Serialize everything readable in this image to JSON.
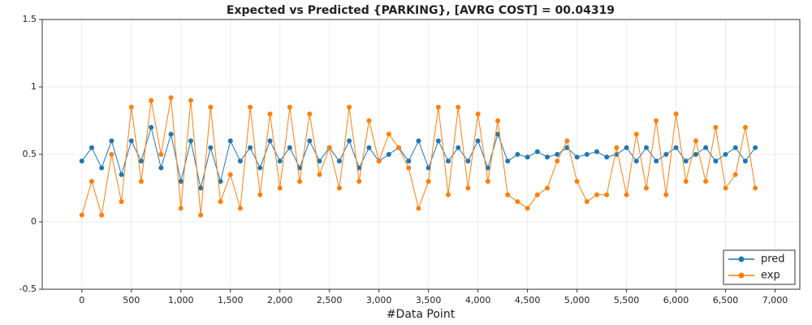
{
  "chart_data": {
    "type": "line",
    "title": "Expected vs Predicted {PARKING}, [AVRG COST] = 00.04319",
    "x_label": "#Data Point",
    "x": [
      0,
      100,
      200,
      300,
      400,
      500,
      600,
      700,
      800,
      900,
      1000,
      1100,
      1200,
      1300,
      1400,
      1500,
      1600,
      1700,
      1800,
      1900,
      2000,
      2100,
      2200,
      2300,
      2400,
      2500,
      2600,
      2700,
      2800,
      2900,
      3000,
      3100,
      3200,
      3300,
      3400,
      3500,
      3600,
      3700,
      3800,
      3900,
      4000,
      4100,
      4200,
      4300,
      4400,
      4500,
      4600,
      4700,
      4800,
      4900,
      5000,
      5100,
      5200,
      5300,
      5400,
      5500,
      5600,
      5700,
      5800,
      5900,
      6000,
      6100,
      6200,
      6300,
      6400,
      6500,
      6600,
      6700,
      6800
    ],
    "series": [
      {
        "name": "pred",
        "color": "#1f77b4",
        "values": [
          0.45,
          0.55,
          0.4,
          0.6,
          0.35,
          0.6,
          0.45,
          0.7,
          0.4,
          0.65,
          0.3,
          0.6,
          0.25,
          0.55,
          0.3,
          0.6,
          0.45,
          0.55,
          0.4,
          0.6,
          0.45,
          0.55,
          0.4,
          0.6,
          0.45,
          0.55,
          0.45,
          0.6,
          0.4,
          0.55,
          0.45,
          0.5,
          0.55,
          0.45,
          0.6,
          0.4,
          0.6,
          0.45,
          0.55,
          0.45,
          0.6,
          0.4,
          0.65,
          0.45,
          0.5,
          0.48,
          0.52,
          0.48,
          0.5,
          0.55,
          0.48,
          0.5,
          0.52,
          0.48,
          0.5,
          0.55,
          0.45,
          0.55,
          0.45,
          0.5,
          0.55,
          0.45,
          0.5,
          0.55,
          0.45,
          0.5,
          0.55,
          0.45,
          0.55
        ]
      },
      {
        "name": "exp",
        "color": "#ff7f0e",
        "values": [
          0.05,
          0.3,
          0.05,
          0.5,
          0.15,
          0.85,
          0.3,
          0.9,
          0.5,
          0.92,
          0.1,
          0.9,
          0.05,
          0.85,
          0.15,
          0.35,
          0.1,
          0.85,
          0.2,
          0.8,
          0.25,
          0.85,
          0.3,
          0.8,
          0.35,
          0.55,
          0.25,
          0.85,
          0.3,
          0.75,
          0.45,
          0.65,
          0.55,
          0.4,
          0.1,
          0.3,
          0.85,
          0.2,
          0.85,
          0.25,
          0.8,
          0.3,
          0.75,
          0.2,
          0.15,
          0.1,
          0.2,
          0.25,
          0.45,
          0.6,
          0.3,
          0.15,
          0.2,
          0.2,
          0.55,
          0.2,
          0.65,
          0.25,
          0.75,
          0.2,
          0.8,
          0.3,
          0.6,
          0.3,
          0.7,
          0.25,
          0.35,
          0.7,
          0.25
        ]
      }
    ],
    "xlim": [
      -400,
      7250
    ],
    "xticks": [
      0,
      {
        "value": 500,
        "label": "500"
      },
      {
        "value": 1000,
        "label": "1,000"
      },
      {
        "value": 1500,
        "label": "1,500"
      },
      {
        "value": 2000,
        "label": "2,000"
      },
      {
        "value": 2500,
        "label": "2,500"
      },
      {
        "value": 3000,
        "label": "3,000"
      },
      {
        "value": 3500,
        "label": "3,500"
      },
      {
        "value": 4000,
        "label": "4,000"
      },
      {
        "value": 4500,
        "label": "4,500"
      },
      {
        "value": 5000,
        "label": "5,000"
      },
      {
        "value": 5500,
        "label": "5,500"
      },
      {
        "value": 6000,
        "label": "6,000"
      },
      {
        "value": 6500,
        "label": "6,500"
      },
      {
        "value": 7000,
        "label": "7,000"
      }
    ],
    "ylim": [
      -0.5,
      1.5
    ],
    "yticks": [
      -0.5,
      0,
      0.5,
      1,
      1.5
    ],
    "grid": true,
    "legend": "lower-right"
  }
}
